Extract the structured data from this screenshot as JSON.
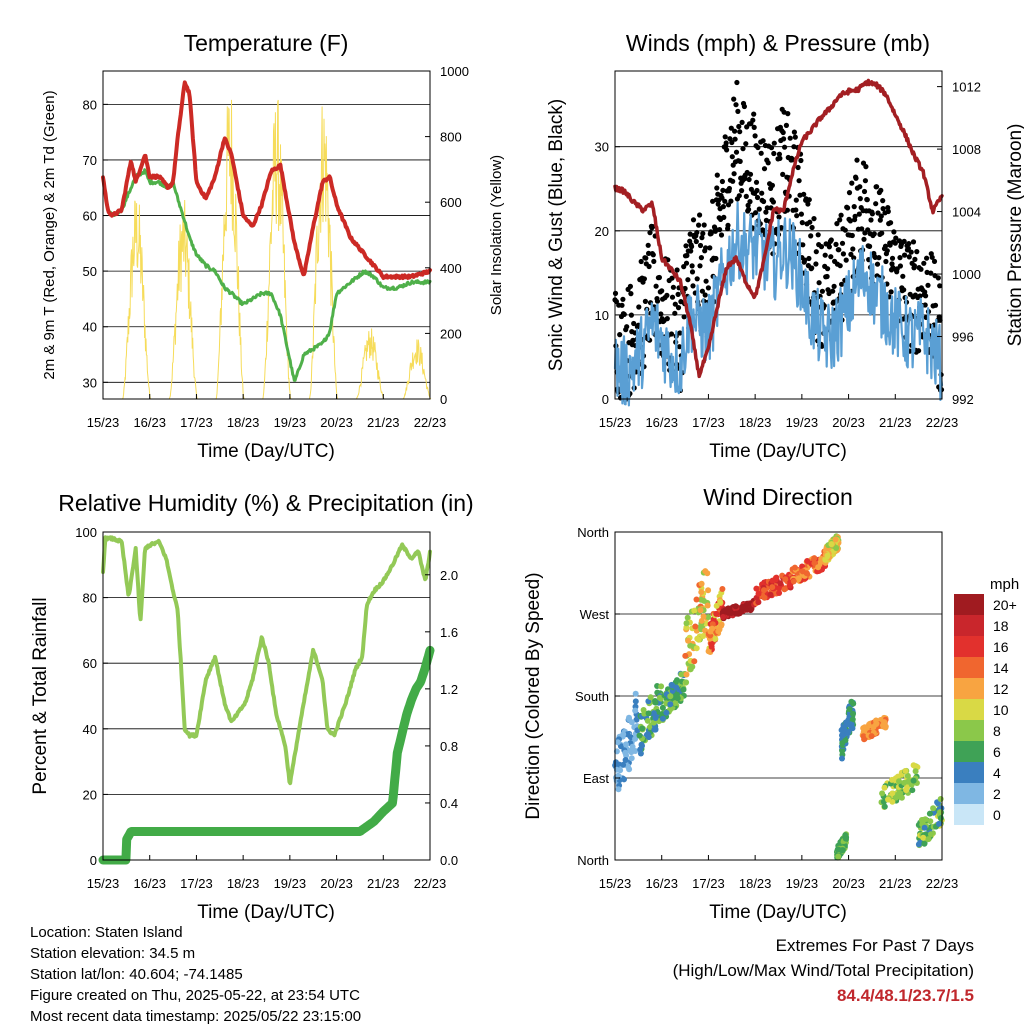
{
  "time_axis": {
    "ticks": [
      "15/23",
      "16/23",
      "17/23",
      "18/23",
      "19/23",
      "20/23",
      "21/23",
      "22/23"
    ],
    "label": "Time (Day/UTC)"
  },
  "panels": {
    "temperature": {
      "title": "Temperature (F)",
      "ylabel_left": "2m & 9m T (Red, Orange) & 2m Td (Green)",
      "ylabel_right": "Solar Insolation (Yellow)"
    },
    "winds": {
      "title": "Winds (mph) & Pressure (mb)",
      "ylabel_left": "Sonic Wind & Gust (Blue, Black)",
      "ylabel_right": "Station Pressure (Maroon)"
    },
    "humidity": {
      "title": "Relative Humidity (%) & Precipitation (in)",
      "ylabel_left": "Percent & Total Rainfall"
    },
    "direction": {
      "title": "Wind Direction",
      "ylabel_left": "Direction (Colored By Speed)",
      "legend_title": "mph",
      "legend_labels": [
        "20+",
        "18",
        "16",
        "14",
        "12",
        "10",
        "8",
        "6",
        "4",
        "2",
        "0"
      ],
      "legend_colors": [
        "#a01b20",
        "#c9262c",
        "#e2312d",
        "#f0662f",
        "#f8a441",
        "#d9d945",
        "#8bc84a",
        "#3fa256",
        "#3a7fbf",
        "#7fb7e3",
        "#c9e6f7"
      ]
    }
  },
  "info": {
    "location": "Location: Staten Island",
    "elevation": "Station elevation: 34.5 m",
    "latlon": "Station lat/lon: 40.604; -74.1485",
    "created": "Figure created on Thu, 2025-05-22, at 23:54 UTC",
    "recent": "Most recent data timestamp: 2025/05/22 23:15:00"
  },
  "extremes": {
    "heading": "Extremes For Past 7 Days",
    "subheading": "(High/Low/Max Wind/Total Precipitation)",
    "value": "84.4/48.1/23.7/1.5"
  },
  "colors": {
    "temp": "#cc2a25",
    "dewpoint": "#4fb04a",
    "solar": "#f6dc5a",
    "wind": "#5a9fd4",
    "gust": "#000000",
    "pressure": "#a31f23",
    "rh": "#93c957",
    "precip": "#42ab47"
  },
  "chart_data": [
    {
      "type": "line",
      "title": "Temperature (F)",
      "xlabel": "Time (Day/UTC)",
      "x": [
        15,
        15.1,
        15.2,
        15.4,
        15.6,
        15.7,
        15.9,
        16.0,
        16.2,
        16.4,
        16.5,
        16.6,
        16.75,
        16.85,
        17.0,
        17.2,
        17.4,
        17.6,
        17.75,
        18.0,
        18.2,
        18.4,
        18.6,
        18.8,
        18.95,
        19.1,
        19.3,
        19.5,
        19.7,
        19.85,
        20.0,
        20.3,
        20.6,
        20.8,
        21.0,
        21.3,
        21.6,
        22.0
      ],
      "ylim": [
        27,
        86
      ],
      "y2lim": [
        0,
        1000
      ],
      "series": [
        {
          "name": "2m & 9m T (Red, Orange)",
          "axis": "left",
          "values": [
            67,
            61,
            60,
            61,
            70,
            66,
            71,
            67,
            67,
            65,
            66,
            74,
            84,
            82,
            66,
            63,
            67,
            74,
            71,
            60,
            58,
            62,
            68,
            69,
            62,
            55,
            49,
            58,
            66,
            67,
            62,
            56,
            53,
            51,
            49,
            49,
            49,
            50
          ]
        },
        {
          "name": "2m Td (Green)",
          "axis": "left",
          "values": [
            67,
            61,
            60,
            61,
            65,
            67,
            68,
            66,
            66,
            65,
            66,
            63,
            59,
            56,
            53,
            51,
            50,
            47,
            46,
            44,
            45,
            46,
            46,
            42,
            36,
            30,
            35,
            36,
            37,
            39,
            46,
            48,
            50,
            49,
            47,
            47,
            48,
            48
          ]
        }
      ],
      "solar_insolation": {
        "axis": "right",
        "day_centers": [
          15.72,
          16.72,
          17.72,
          18.72,
          19.72,
          20.72,
          21.72
        ],
        "peaks": [
          650,
          620,
          980,
          940,
          950,
          220,
          190
        ]
      }
    },
    {
      "type": "line",
      "title": "Winds (mph) & Pressure (mb)",
      "xlabel": "Time (Day/UTC)",
      "x": [
        15,
        15.2,
        15.4,
        15.6,
        15.8,
        16.0,
        16.2,
        16.4,
        16.6,
        16.8,
        17.0,
        17.2,
        17.4,
        17.6,
        17.8,
        18.0,
        18.2,
        18.4,
        18.6,
        18.8,
        19.0,
        19.2,
        19.4,
        19.6,
        19.8,
        20.0,
        20.2,
        20.4,
        20.6,
        20.8,
        21.0,
        21.2,
        21.4,
        21.6,
        21.8,
        22.0
      ],
      "ylim": [
        0,
        39
      ],
      "y2lim": [
        992,
        1013
      ],
      "series": [
        {
          "name": "Sonic Wind (Blue)",
          "axis": "left",
          "values": [
            4,
            3,
            4,
            6,
            9,
            7,
            5,
            4,
            10,
            9,
            8,
            12,
            16,
            19,
            18,
            18,
            17,
            16,
            18,
            17,
            14,
            10,
            8,
            7,
            9,
            11,
            14,
            15,
            12,
            11,
            9,
            8,
            7,
            8,
            6,
            4
          ]
        },
        {
          "name": "Gust (Black)",
          "axis": "left",
          "values": [
            8,
            6,
            8,
            10,
            14,
            11,
            9,
            8,
            16,
            15,
            14,
            20,
            27,
            31,
            28,
            27,
            25,
            24,
            28,
            26,
            22,
            16,
            13,
            12,
            15,
            18,
            22,
            23,
            19,
            17,
            15,
            13,
            12,
            13,
            10,
            7
          ]
        },
        {
          "name": "Station Pressure (Maroon)",
          "axis": "right",
          "values": [
            1005.5,
            1005.3,
            1004.6,
            1004.1,
            1004.5,
            1001.0,
            1000.3,
            999.5,
            997.0,
            993.5,
            995.2,
            998.0,
            1000.5,
            1001.0,
            999.5,
            998.5,
            1001.0,
            1004.2,
            1004.0,
            1006.5,
            1008.5,
            1009.2,
            1010.0,
            1010.6,
            1011.4,
            1011.7,
            1011.8,
            1012.3,
            1012.1,
            1011.5,
            1010.2,
            1009.0,
            1007.6,
            1006.5,
            1004.0,
            1005.0
          ]
        }
      ]
    },
    {
      "type": "line",
      "title": "Relative Humidity (%) & Precipitation (in)",
      "xlabel": "Time (Day/UTC)",
      "x": [
        15,
        15.05,
        15.2,
        15.4,
        15.55,
        15.7,
        15.8,
        15.9,
        16.0,
        16.2,
        16.35,
        16.5,
        16.6,
        16.75,
        16.85,
        17.0,
        17.2,
        17.4,
        17.6,
        17.75,
        17.9,
        18.05,
        18.2,
        18.4,
        18.55,
        18.7,
        18.9,
        19.0,
        19.2,
        19.5,
        19.7,
        19.8,
        19.95,
        20.2,
        20.4,
        20.55,
        20.65,
        20.8,
        21.0,
        21.2,
        21.4,
        21.6,
        21.75,
        21.9,
        22.0
      ],
      "ylim": [
        0,
        100
      ],
      "y2lim": [
        0,
        2.3
      ],
      "series": [
        {
          "name": "Relative Humidity",
          "axis": "left",
          "values": [
            88,
            98,
            98,
            97,
            80,
            95,
            72,
            95,
            96,
            97,
            92,
            82,
            76,
            40,
            38,
            38,
            55,
            62,
            48,
            42,
            45,
            48,
            55,
            68,
            60,
            45,
            35,
            23,
            40,
            64,
            55,
            40,
            38,
            48,
            58,
            62,
            78,
            82,
            85,
            90,
            96,
            92,
            94,
            85,
            94
          ]
        }
      ],
      "precip_total": {
        "axis": "right",
        "x": [
          15,
          15.5,
          15.5,
          15.6,
          16.0,
          17.0,
          18.0,
          19.0,
          20.0,
          20.5,
          20.8,
          21.0,
          21.2,
          21.3,
          21.5,
          21.6,
          21.7,
          21.8,
          21.9,
          22.0
        ],
        "values": [
          0.0,
          0.0,
          0.14,
          0.2,
          0.2,
          0.2,
          0.2,
          0.2,
          0.2,
          0.2,
          0.27,
          0.34,
          0.4,
          0.75,
          1.02,
          1.12,
          1.2,
          1.25,
          1.35,
          1.47
        ]
      }
    },
    {
      "type": "scatter",
      "title": "Wind Direction",
      "xlabel": "Time (Day/UTC)",
      "yticks": [
        "North",
        "East",
        "South",
        "West",
        "North"
      ],
      "ylim": [
        0,
        360
      ],
      "color_by": "speed (mph)",
      "segments": [
        {
          "x": [
            15.0,
            15.5
          ],
          "dir": [
            60,
            190
          ],
          "speed": [
            1,
            4
          ]
        },
        {
          "x": [
            15.5,
            16.0
          ],
          "dir": [
            110,
            200
          ],
          "speed": [
            3,
            9
          ]
        },
        {
          "x": [
            16.0,
            16.5
          ],
          "dir": [
            150,
            210
          ],
          "speed": [
            4,
            8
          ]
        },
        {
          "x": [
            16.5,
            17.0
          ],
          "dir": [
            190,
            330
          ],
          "speed": [
            7,
            14
          ]
        },
        {
          "x": [
            17.0,
            17.3
          ],
          "dir": [
            220,
            300
          ],
          "speed": [
            10,
            16
          ]
        },
        {
          "x": [
            17.3,
            18.0
          ],
          "dir": [
            265,
            285
          ],
          "speed": [
            18,
            22
          ]
        },
        {
          "x": [
            18.0,
            18.8
          ],
          "dir": [
            280,
            320
          ],
          "speed": [
            13,
            18
          ]
        },
        {
          "x": [
            18.8,
            19.5
          ],
          "dir": [
            300,
            340
          ],
          "speed": [
            11,
            16
          ]
        },
        {
          "x": [
            19.5,
            19.8
          ],
          "dir": [
            325,
            360
          ],
          "speed": [
            7,
            13
          ]
        },
        {
          "x": [
            19.75,
            19.95
          ],
          "dir": [
            0,
            30
          ],
          "speed": [
            5,
            8
          ]
        },
        {
          "x": [
            19.85,
            20.1
          ],
          "dir": [
            110,
            180
          ],
          "speed": [
            3,
            6
          ]
        },
        {
          "x": [
            20.3,
            20.8
          ],
          "dir": [
            130,
            160
          ],
          "speed": [
            11,
            14
          ]
        },
        {
          "x": [
            20.7,
            21.5
          ],
          "dir": [
            50,
            110
          ],
          "speed": [
            6,
            10
          ]
        },
        {
          "x": [
            21.5,
            22.0
          ],
          "dir": [
            10,
            70
          ],
          "speed": [
            4,
            10
          ]
        }
      ]
    }
  ]
}
